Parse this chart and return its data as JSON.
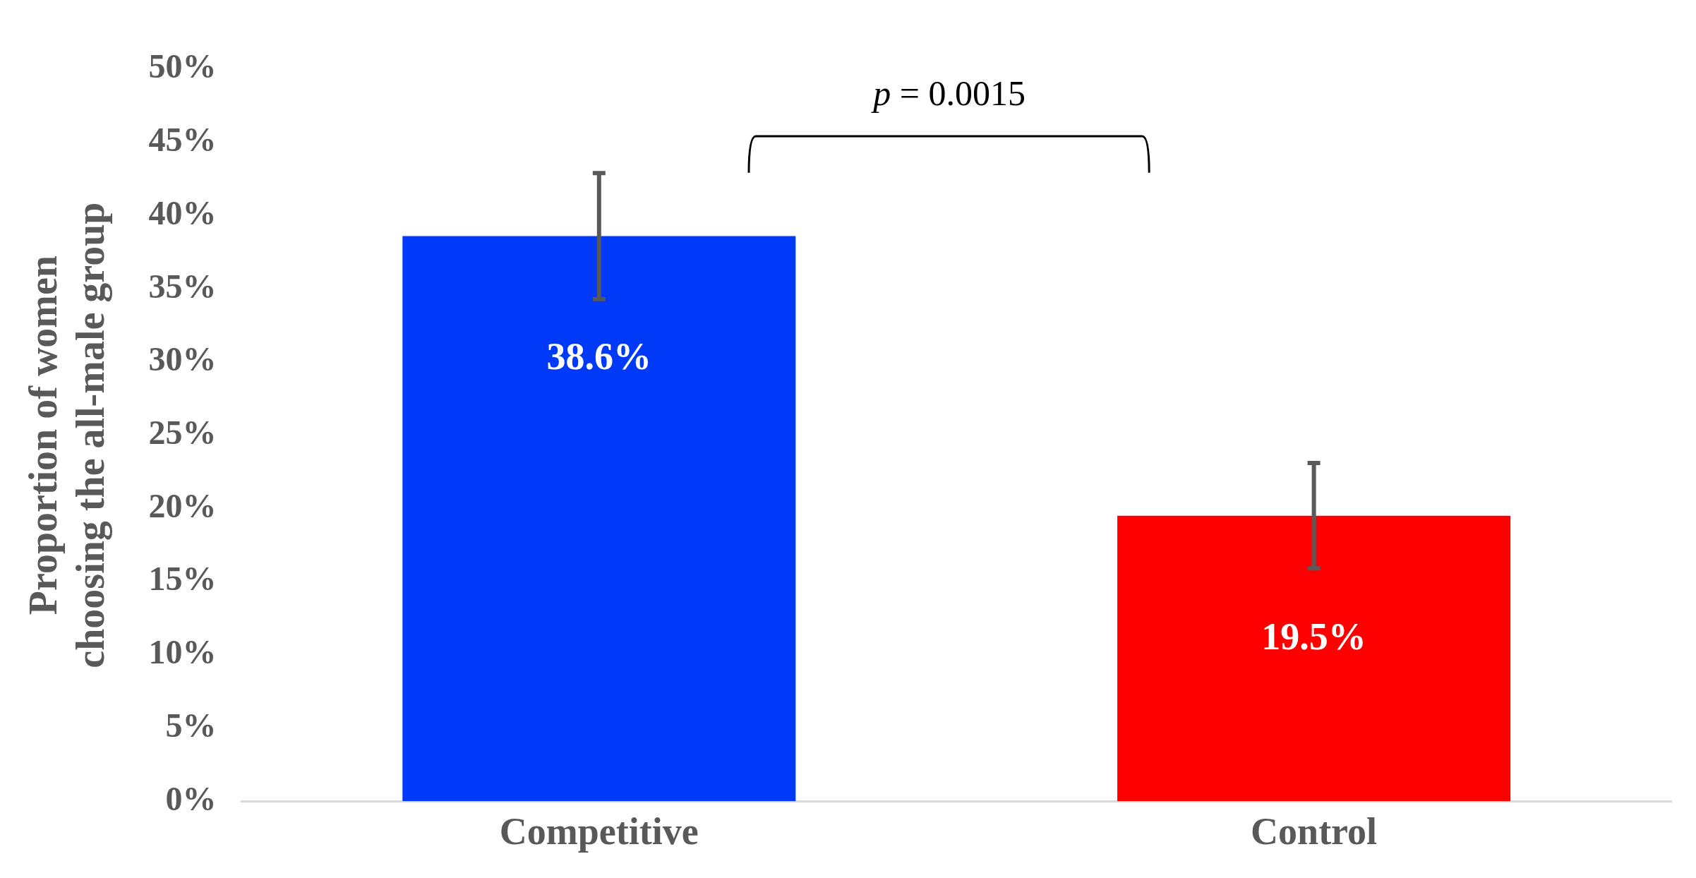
{
  "chart_data": {
    "type": "bar",
    "ylabel": "Proportion of women\nchoosing the all-male group",
    "categories": [
      "Competitive",
      "Control"
    ],
    "values": [
      38.6,
      19.5
    ],
    "colors": [
      "#0039f7",
      "#ff0000"
    ],
    "value_labels": [
      "38.6%",
      "19.5%"
    ],
    "errors": [
      4.3,
      3.6
    ],
    "ylim": [
      0,
      50
    ],
    "yticks": [
      {
        "value": 0,
        "label": "0%"
      },
      {
        "value": 5,
        "label": "5%"
      },
      {
        "value": 10,
        "label": "10%"
      },
      {
        "value": 15,
        "label": "15%"
      },
      {
        "value": 20,
        "label": "20%"
      },
      {
        "value": 25,
        "label": "25%"
      },
      {
        "value": 30,
        "label": "30%"
      },
      {
        "value": 35,
        "label": "35%"
      },
      {
        "value": 40,
        "label": "40%"
      },
      {
        "value": 45,
        "label": "45%"
      },
      {
        "value": 50,
        "label": "50%"
      }
    ],
    "grid": false,
    "annotations": [
      "p = 0.0015"
    ]
  }
}
